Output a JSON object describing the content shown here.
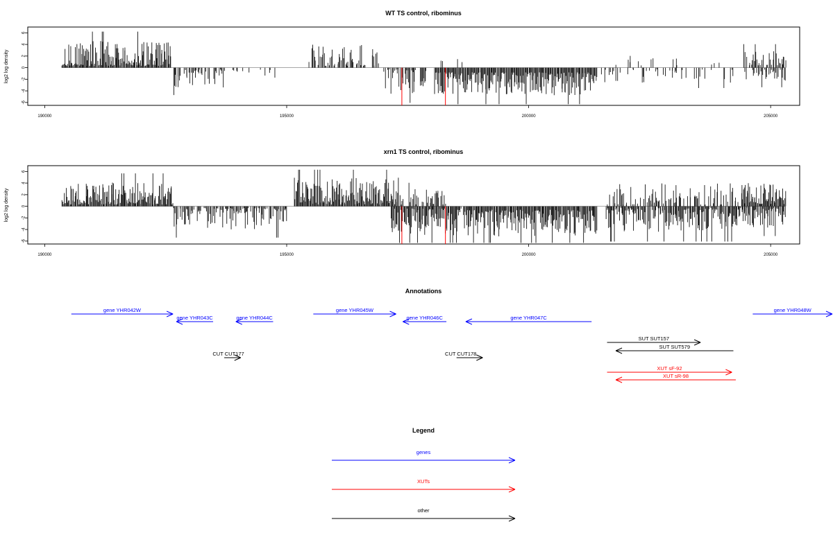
{
  "chart_data": [
    {
      "type": "bar",
      "title": "WT TS control, ribominus",
      "ylabel": "log2 log density",
      "xlabel": "",
      "xlim": [
        189650,
        205600
      ],
      "ylim": [
        -6.5,
        7
      ],
      "x_ticks": [
        190000,
        195000,
        200000,
        205000
      ],
      "y_ticks": [
        6,
        4,
        2,
        0,
        -2,
        -4,
        -6
      ],
      "highlight_color": "#ff0000",
      "highlights": [
        {
          "x": 197380,
          "y": -6.5
        },
        {
          "x": 198280,
          "y": -6.5
        }
      ],
      "segments": [
        {
          "from": 190350,
          "to": 192600,
          "sign": 1,
          "min": 0.3,
          "max": 4.6,
          "density": 1.0
        },
        {
          "from": 192650,
          "to": 193700,
          "sign": -1,
          "min": 0.3,
          "max": 3.5,
          "density": 0.55
        },
        {
          "from": 193750,
          "to": 195000,
          "sign": -1,
          "min": 0.3,
          "max": 2.2,
          "density": 0.15
        },
        {
          "from": 195450,
          "to": 196900,
          "sign": 1,
          "min": 0.3,
          "max": 4.0,
          "density": 0.6
        },
        {
          "from": 197000,
          "to": 197900,
          "sign": -1,
          "min": 0.3,
          "max": 4.5,
          "density": 0.7
        },
        {
          "from": 198000,
          "to": 198800,
          "sign": 1,
          "min": 0.3,
          "max": 2.0,
          "density": 0.1
        },
        {
          "from": 198050,
          "to": 201400,
          "sign": -1,
          "min": 0.8,
          "max": 4.8,
          "density": 1.0
        },
        {
          "from": 201500,
          "to": 204300,
          "sign": -1,
          "min": 0.3,
          "max": 2.6,
          "density": 0.22
        },
        {
          "from": 201600,
          "to": 204000,
          "sign": 1,
          "min": 0.3,
          "max": 2.2,
          "density": 0.08
        },
        {
          "from": 204400,
          "to": 205300,
          "sign": 1,
          "min": 0.4,
          "max": 3.0,
          "density": 0.7
        },
        {
          "from": 204450,
          "to": 205300,
          "sign": -1,
          "min": 0.3,
          "max": 2.5,
          "density": 0.45
        }
      ]
    },
    {
      "type": "bar",
      "title": "xrn1 TS control, ribominus",
      "ylabel": "log2 log density",
      "xlabel": "",
      "xlim": [
        189650,
        205600
      ],
      "ylim": [
        -6.5,
        7
      ],
      "x_ticks": [
        190000,
        195000,
        200000,
        205000
      ],
      "y_ticks": [
        6,
        4,
        2,
        0,
        -2,
        -4,
        -6
      ],
      "highlight_color": "#ff0000",
      "highlights": [
        {
          "x": 197380,
          "y": -6.5
        },
        {
          "x": 198280,
          "y": -6.5
        }
      ],
      "segments": [
        {
          "from": 190350,
          "to": 192650,
          "sign": 1,
          "min": 0.3,
          "max": 4.2,
          "density": 1.0
        },
        {
          "from": 192650,
          "to": 195000,
          "sign": -1,
          "min": 0.3,
          "max": 4.0,
          "density": 0.75
        },
        {
          "from": 195150,
          "to": 197300,
          "sign": 1,
          "min": 0.3,
          "max": 5.0,
          "density": 1.0
        },
        {
          "from": 197150,
          "to": 198600,
          "sign": -1,
          "min": 0.4,
          "max": 5.0,
          "density": 1.0
        },
        {
          "from": 197300,
          "to": 198300,
          "sign": 1,
          "min": 0.3,
          "max": 3.0,
          "density": 0.5
        },
        {
          "from": 198650,
          "to": 201400,
          "sign": -1,
          "min": 0.6,
          "max": 5.2,
          "density": 1.0
        },
        {
          "from": 201600,
          "to": 204400,
          "sign": -1,
          "min": 0.3,
          "max": 4.5,
          "density": 0.85
        },
        {
          "from": 201600,
          "to": 204400,
          "sign": 1,
          "min": 0.3,
          "max": 4.0,
          "density": 0.45
        },
        {
          "from": 204400,
          "to": 205300,
          "sign": 1,
          "min": 0.4,
          "max": 4.2,
          "density": 1.0
        },
        {
          "from": 204400,
          "to": 205300,
          "sign": -1,
          "min": 0.3,
          "max": 3.8,
          "density": 0.9
        }
      ]
    }
  ],
  "annotations": {
    "title": "Annotations",
    "items": [
      {
        "label": "gene YHR042W",
        "start": 190550,
        "end": 192650,
        "strand": "+",
        "row": 0,
        "color": "#0000ff"
      },
      {
        "label": "gene YHR043C",
        "start": 192720,
        "end": 193480,
        "strand": "-",
        "row": 1,
        "color": "#0000ff"
      },
      {
        "label": "gene YHR044C",
        "start": 193950,
        "end": 194720,
        "strand": "-",
        "row": 1,
        "color": "#0000ff"
      },
      {
        "label": "gene YHR045W",
        "start": 195550,
        "end": 197260,
        "strand": "+",
        "row": 0,
        "color": "#0000ff"
      },
      {
        "label": "gene YHR046C",
        "start": 197400,
        "end": 198300,
        "strand": "-",
        "row": 1,
        "color": "#0000ff"
      },
      {
        "label": "gene YHR047C",
        "start": 198700,
        "end": 201300,
        "strand": "-",
        "row": 1,
        "color": "#0000ff"
      },
      {
        "label": "gene YHR048W",
        "start": 204630,
        "end": 206300,
        "strand": "+",
        "row": 0,
        "color": "#0000ff"
      },
      {
        "label": "SUT SUT157",
        "start": 201620,
        "end": 203550,
        "strand": "+",
        "row": 2,
        "color": "#000000"
      },
      {
        "label": "SUT SUT579",
        "start": 201800,
        "end": 204230,
        "strand": "-",
        "row": 3,
        "color": "#000000"
      },
      {
        "label": "CUT CUT177",
        "start": 193710,
        "end": 194050,
        "strand": "+",
        "row": 4,
        "color": "#000000"
      },
      {
        "label": "CUT CUT178",
        "start": 198510,
        "end": 199050,
        "strand": "+",
        "row": 4,
        "color": "#000000"
      },
      {
        "label": "XUT sF-92",
        "start": 201620,
        "end": 204200,
        "strand": "+",
        "row": 5,
        "color": "#ff0000"
      },
      {
        "label": "XUT sR-98",
        "start": 201800,
        "end": 204280,
        "strand": "-",
        "row": 6,
        "color": "#ff0000"
      }
    ]
  },
  "legend": {
    "title": "Legend",
    "items": [
      {
        "label": "genes",
        "color": "#0000ff"
      },
      {
        "label": "XUTs",
        "color": "#ff0000"
      },
      {
        "label": "other",
        "color": "#000000"
      }
    ]
  }
}
